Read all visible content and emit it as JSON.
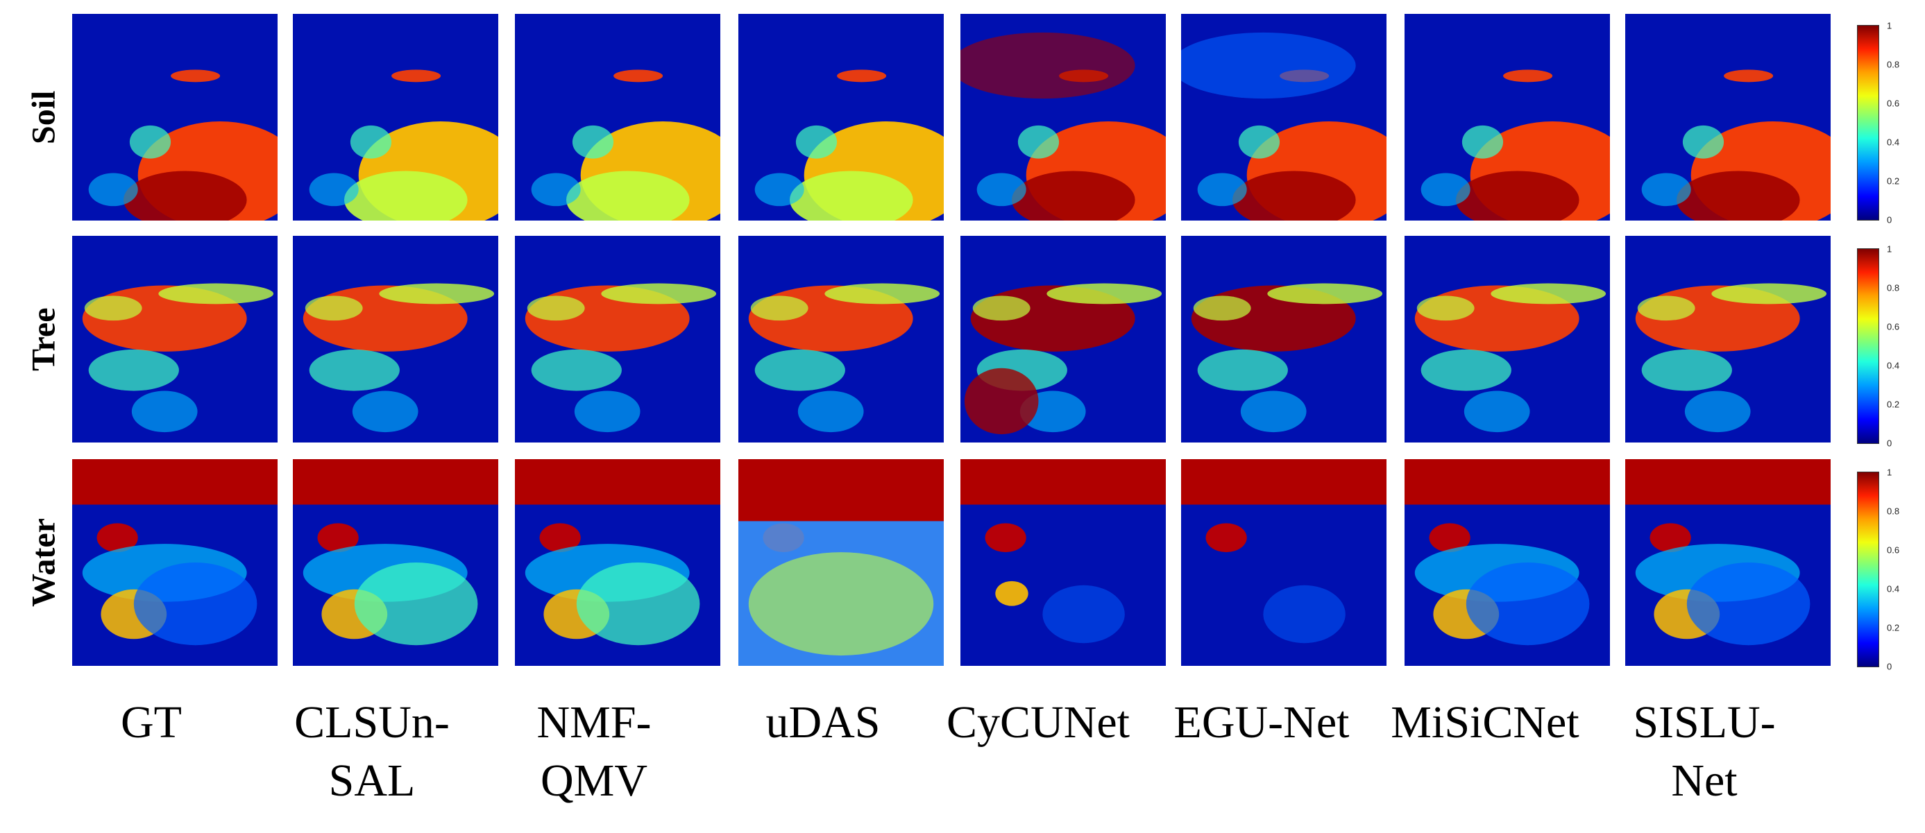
{
  "rows": [
    {
      "label": "Soil"
    },
    {
      "label": "Tree"
    },
    {
      "label": "Water"
    }
  ],
  "columns": [
    {
      "label": "GT"
    },
    {
      "label": "CLSUn-\nSAL"
    },
    {
      "label": "NMF-\nQMV"
    },
    {
      "label": "uDAS"
    },
    {
      "label": "CyCUNet"
    },
    {
      "label": "EGU-Net"
    },
    {
      "label": "MiSiCNet"
    },
    {
      "label": "SISLU-Net"
    }
  ],
  "colorbar": {
    "ticks": [
      "1",
      "0.8",
      "0.6",
      "0.4",
      "0.2",
      "0"
    ],
    "colormap": "jet"
  },
  "colors": {
    "low": "#0000a8",
    "mid": "#22ffdd",
    "high": "#800000"
  }
}
